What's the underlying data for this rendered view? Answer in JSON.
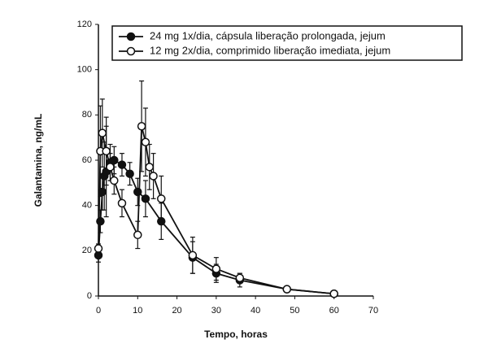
{
  "chart_data": {
    "type": "line",
    "xlabel": "Tempo, horas",
    "ylabel": "Galantamina, ng/mL",
    "xlim": [
      0,
      70
    ],
    "xticks": [
      0,
      10,
      20,
      30,
      40,
      50,
      60,
      70
    ],
    "ylim": [
      0,
      120
    ],
    "yticks": [
      0,
      20,
      40,
      60,
      80,
      100,
      120
    ],
    "grid": false,
    "legend": "upper right",
    "series": [
      {
        "name": "24 mg 1x/dia, cápsula liberação prolongada, jejum",
        "color": "#111111",
        "marker": "filled",
        "x": [
          0,
          0.5,
          1,
          1.5,
          2,
          3,
          4,
          6,
          8,
          10,
          12,
          16,
          24,
          30,
          36,
          48,
          60
        ],
        "values": [
          18,
          33,
          46,
          53,
          55,
          59,
          60,
          58,
          54,
          46,
          43,
          33,
          17,
          10,
          7,
          3,
          1
        ],
        "errors": [
          3,
          5,
          8,
          15,
          20,
          8,
          6,
          5,
          5,
          6,
          8,
          8,
          7,
          4,
          3,
          1,
          1
        ]
      },
      {
        "name": "12 mg 2x/dia, comprimido liberação imediata, jejum",
        "color": "#111111",
        "marker": "open",
        "x": [
          0,
          0.5,
          1,
          2,
          3,
          4,
          6,
          10,
          11,
          12,
          13,
          14,
          16,
          24,
          30,
          36,
          48,
          60
        ],
        "values": [
          21,
          64,
          72,
          64,
          57,
          51,
          41,
          27,
          75,
          68,
          57,
          53,
          43,
          18,
          12,
          8,
          3,
          1
        ],
        "errors": [
          2,
          20,
          15,
          15,
          6,
          6,
          6,
          6,
          20,
          15,
          10,
          10,
          10,
          8,
          5,
          2,
          1,
          1
        ]
      }
    ]
  }
}
